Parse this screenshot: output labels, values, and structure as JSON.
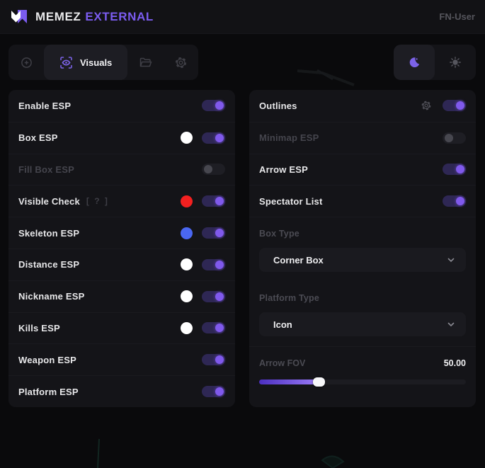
{
  "header": {
    "title_primary": "MEMEZ",
    "title_accent": "EXTERNAL",
    "user": "FN-User"
  },
  "tabs": {
    "aimbot_icon": "crosshair-icon",
    "visuals": {
      "label": "Visuals",
      "icon": "eye-scan-icon",
      "active": true
    },
    "config_icon": "folder-icon",
    "settings_icon": "gear-icon",
    "theme": {
      "dark_icon": "moon-icon",
      "light_icon": "sun-icon",
      "selected": "dark"
    }
  },
  "left_panel": {
    "rows": [
      {
        "label": "Enable ESP",
        "enabled": true
      },
      {
        "label": "Box ESP",
        "enabled": true,
        "color": "#ffffff"
      },
      {
        "label": "Fill Box ESP",
        "enabled": false,
        "disabled": true
      },
      {
        "label": "Visible Check",
        "enabled": true,
        "color": "#f32020",
        "hint": "[ ? ]"
      },
      {
        "label": "Skeleton ESP",
        "enabled": true,
        "color": "#4a67f2"
      },
      {
        "label": "Distance ESP",
        "enabled": true,
        "color": "#ffffff"
      },
      {
        "label": "Nickname ESP",
        "enabled": true,
        "color": "#ffffff"
      },
      {
        "label": "Kills ESP",
        "enabled": true,
        "color": "#ffffff"
      },
      {
        "label": "Weapon ESP",
        "enabled": true
      },
      {
        "label": "Platform ESP",
        "enabled": true
      }
    ]
  },
  "right_panel": {
    "rows": [
      {
        "label": "Outlines",
        "enabled": true,
        "has_settings_gear": true
      },
      {
        "label": "Minimap ESP",
        "enabled": false,
        "disabled": true
      },
      {
        "label": "Arrow ESP",
        "enabled": true
      },
      {
        "label": "Spectator List",
        "enabled": true
      }
    ],
    "box_type": {
      "label": "Box Type",
      "value": "Corner Box"
    },
    "platform_type": {
      "label": "Platform Type",
      "value": "Icon"
    },
    "arrow_fov": {
      "label": "Arrow FOV",
      "value": "50.00",
      "percent": "29"
    }
  },
  "colors": {
    "accent": "#7b5cf0",
    "toggle_knob_on": "#8059ec",
    "toggle_track_on": "#2e2754",
    "swatch_red": "#f32020",
    "swatch_blue": "#4a67f2",
    "swatch_white": "#ffffff",
    "panel_bg": "#141418",
    "page_bg": "#0a0a0c"
  }
}
